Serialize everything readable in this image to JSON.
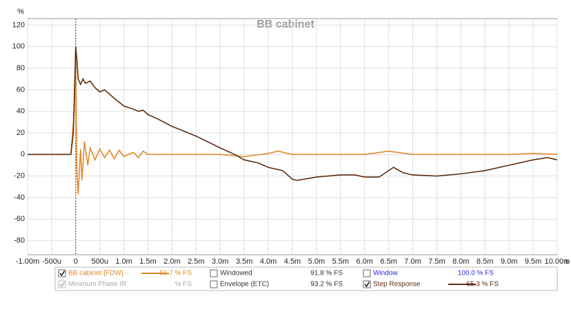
{
  "chart_data": {
    "type": "line",
    "title": "BB cabinet",
    "y_label": "%",
    "x_unit": "s",
    "xlim": [
      -0.001,
      0.01
    ],
    "ylim": [
      -93,
      126
    ],
    "xticks": [
      {
        "value": -0.001,
        "label": "-1.00m"
      },
      {
        "value": -0.0005,
        "label": "-500u"
      },
      0,
      {
        "value": 0.0005,
        "label": "500u"
      },
      {
        "value": 0.001,
        "label": "1.0m"
      },
      {
        "value": 0.0015,
        "label": "1.5m"
      },
      {
        "value": 0.002,
        "label": "2.0m"
      },
      {
        "value": 0.0025,
        "label": "2.5m"
      },
      {
        "value": 0.003,
        "label": "3.0m"
      },
      {
        "value": 0.0035,
        "label": "3.5m"
      },
      {
        "value": 0.004,
        "label": "4.0m"
      },
      {
        "value": 0.0045,
        "label": "4.5m"
      },
      {
        "value": 0.005,
        "label": "5.0m"
      },
      {
        "value": 0.0055,
        "label": "5.5m"
      },
      {
        "value": 0.006,
        "label": "6.0m"
      },
      {
        "value": 0.0065,
        "label": "6.5m"
      },
      {
        "value": 0.007,
        "label": "7.0m"
      },
      {
        "value": 0.0075,
        "label": "7.5m"
      },
      {
        "value": 0.008,
        "label": "8.0m"
      },
      {
        "value": 0.0085,
        "label": "8.5m"
      },
      {
        "value": 0.009,
        "label": "9.0m"
      },
      {
        "value": 0.0095,
        "label": "9.5m"
      },
      {
        "value": 0.01,
        "label": "10.00m"
      }
    ],
    "yticks": [
      -80,
      -60,
      -40,
      -20,
      0,
      20,
      40,
      60,
      80,
      100,
      120
    ],
    "grid": true,
    "reference_line_x": 0,
    "series": [
      {
        "name": "BB cabinet [FDW]",
        "color": "#e0892a",
        "reading": "91.7 % FS",
        "checked": true,
        "x": [
          -0.001,
          -0.0001,
          -3e-05,
          0,
          2e-05,
          5e-05,
          0.0001,
          0.00013,
          0.00018,
          0.00025,
          0.0003,
          0.0004,
          0.0005,
          0.0006,
          0.0007,
          0.0008,
          0.0009,
          0.001,
          0.0012,
          0.0013,
          0.0014,
          0.0015,
          0.002,
          0.003,
          0.0035,
          0.004,
          0.0042,
          0.0045,
          0.006,
          0.0065,
          0.007,
          0.009,
          0.0095,
          0.01
        ],
        "values": [
          0,
          0,
          40,
          100,
          -10,
          -37,
          5,
          -24,
          12,
          -10,
          6,
          -5,
          5,
          -3,
          4,
          -4,
          4,
          -2,
          2,
          -3,
          3,
          0,
          0,
          0,
          -2,
          1,
          3,
          0,
          0,
          3,
          0,
          0,
          1,
          0
        ]
      },
      {
        "name": "Step Response",
        "color": "#5b2e10",
        "reading": "65.3 % FS",
        "checked": true,
        "x": [
          -0.001,
          -0.0001,
          -5e-05,
          0,
          2e-05,
          5e-05,
          0.0001,
          0.00015,
          0.0002,
          0.0003,
          0.0004,
          0.0005,
          0.0006,
          0.0008,
          0.001,
          0.0012,
          0.0013,
          0.0014,
          0.0015,
          0.0017,
          0.002,
          0.0025,
          0.003,
          0.0033,
          0.0035,
          0.0038,
          0.004,
          0.0043,
          0.0045,
          0.0046,
          0.005,
          0.0055,
          0.0058,
          0.006,
          0.0063,
          0.0065,
          0.0066,
          0.0068,
          0.007,
          0.0075,
          0.008,
          0.0085,
          0.009,
          0.0095,
          0.0098,
          0.01
        ],
        "values": [
          0,
          0,
          20,
          100,
          90,
          70,
          65,
          70,
          66,
          68,
          62,
          58,
          60,
          52,
          45,
          42,
          40,
          41,
          37,
          33,
          26,
          17,
          6,
          0,
          -5,
          -8,
          -12,
          -15,
          -23,
          -24,
          -21,
          -19,
          -19,
          -21,
          -21,
          -15,
          -12,
          -17,
          -19,
          -20,
          -18,
          -15,
          -10,
          -5,
          -3,
          -5
        ]
      }
    ],
    "other_traces": [
      {
        "name": "Windowed",
        "reading": "91.8 % FS",
        "checked": false
      },
      {
        "name": "Window",
        "reading": "100.0 % FS",
        "checked": false,
        "color": "#2b2bd0"
      },
      {
        "name": "Minimum Phase IR",
        "reading": "% FS",
        "checked": true,
        "disabled": true
      },
      {
        "name": "Envelope (ETC)",
        "reading": "93.2 % FS",
        "checked": false
      }
    ]
  }
}
